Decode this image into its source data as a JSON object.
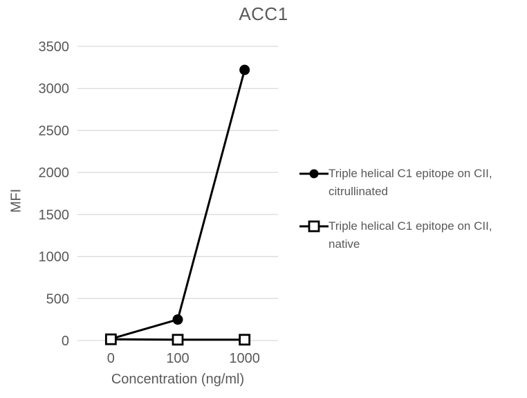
{
  "chart_data": {
    "type": "line",
    "title": "ACC1",
    "xlabel": "Concentration (ng/ml)",
    "ylabel": "MFI",
    "categories": [
      "0",
      "100",
      "1000"
    ],
    "series": [
      {
        "name": "Triple helical C1 epitope on CII, citrullinated",
        "marker": "filled-circle",
        "color": "#000000",
        "values": [
          20,
          250,
          3220
        ]
      },
      {
        "name": "Triple helical C1 epitope on CII, native",
        "marker": "open-square",
        "color": "#000000",
        "values": [
          15,
          10,
          10
        ]
      }
    ],
    "ylim": [
      0,
      3500
    ],
    "ytick_step": 500,
    "grid": "horizontal",
    "legend_position": "right",
    "legend": [
      {
        "marker": "filled-circle",
        "lines": [
          "Triple helical C1 epitope on CII,",
          "citrullinated"
        ]
      },
      {
        "marker": "open-square",
        "lines": [
          "Triple helical C1 epitope on CII,",
          "native"
        ]
      }
    ]
  },
  "colors": {
    "text": "#595959",
    "gridline": "#d9d9d9",
    "series": "#000000",
    "background": "#ffffff"
  }
}
